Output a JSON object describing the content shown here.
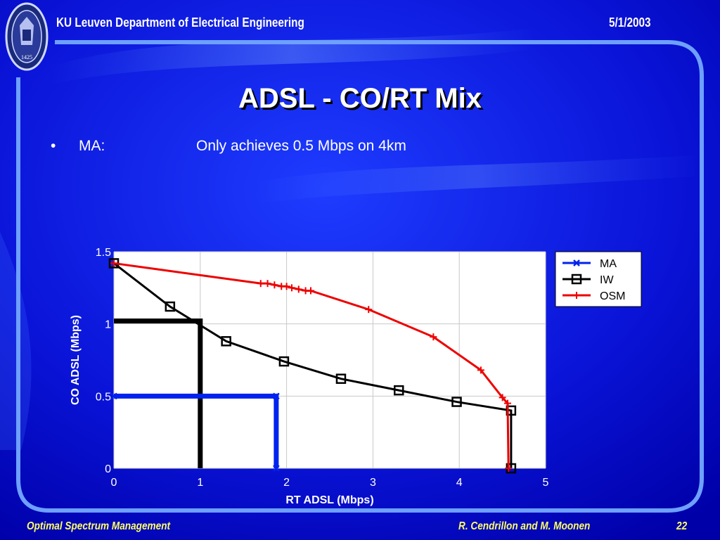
{
  "header": {
    "organization": "KU Leuven Department of Electrical Engineering",
    "date": "5/1/2003",
    "logo_year": "1425"
  },
  "title": "ADSL - CO/RT Mix",
  "bullet": {
    "marker": "•",
    "label": "MA:",
    "text": "Only achieves 0.5 Mbps on 4km"
  },
  "footer": {
    "left": "Optimal Spectrum Management",
    "authors": "R. Cendrillon and M. Moonen",
    "page_number": "22"
  },
  "colors": {
    "background": "#0000cc",
    "panel_border": "#6ea0ff",
    "ma": "#0022ee",
    "iw": "#000000",
    "osm": "#ee0000"
  },
  "chart_data": {
    "type": "line",
    "xlabel": "RT ADSL (Mbps)",
    "ylabel": "CO ADSL (Mbps)",
    "xlim": [
      0,
      5
    ],
    "ylim": [
      0,
      1.5
    ],
    "x_ticks": [
      "0",
      "1",
      "2",
      "3",
      "4",
      "5"
    ],
    "y_ticks": [
      "0",
      "0.5",
      "1",
      "1.5"
    ],
    "grid": true,
    "legend_position": "right",
    "series": [
      {
        "name": "MA",
        "color": "#0022ee",
        "marker": "x",
        "points": [
          [
            0,
            0.5
          ],
          [
            1.88,
            0.5
          ],
          [
            1.88,
            0
          ]
        ]
      },
      {
        "name": "IW",
        "color": "#000000",
        "marker": "square",
        "points": [
          [
            0,
            1.42
          ],
          [
            0.65,
            1.12
          ],
          [
            1.3,
            0.88
          ],
          [
            1.97,
            0.74
          ],
          [
            2.63,
            0.62
          ],
          [
            3.3,
            0.54
          ],
          [
            3.97,
            0.46
          ],
          [
            4.6,
            0.4
          ],
          [
            4.6,
            0
          ]
        ]
      },
      {
        "name": "OSM",
        "color": "#ee0000",
        "marker": "plus",
        "points": [
          [
            0,
            1.42
          ],
          [
            1.7,
            1.28
          ],
          [
            1.78,
            1.28
          ],
          [
            1.86,
            1.27
          ],
          [
            1.94,
            1.26
          ],
          [
            2.0,
            1.26
          ],
          [
            2.06,
            1.25
          ],
          [
            2.14,
            1.24
          ],
          [
            2.22,
            1.23
          ],
          [
            2.28,
            1.23
          ],
          [
            2.95,
            1.1
          ],
          [
            3.7,
            0.91
          ],
          [
            4.25,
            0.68
          ],
          [
            4.5,
            0.49
          ],
          [
            4.56,
            0.45
          ],
          [
            4.57,
            0
          ]
        ]
      }
    ],
    "annotations": [
      {
        "type": "rectangle",
        "color": "#000000",
        "x": [
          0,
          1
        ],
        "y": [
          0,
          1.02
        ]
      },
      {
        "type": "rectangle",
        "color": "#0022ee",
        "x": [
          0,
          1.88
        ],
        "y": [
          0,
          0.5
        ]
      }
    ]
  }
}
